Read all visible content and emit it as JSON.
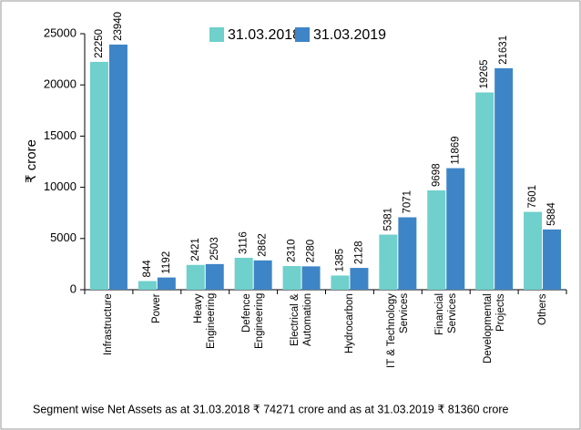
{
  "chart_data": {
    "type": "bar",
    "y_label": "₹ crore",
    "note": "Segment wise Net Assets as at 31.03.2018 ₹ 74271 crore and as at 31.03.2019 ₹ 81360 crore",
    "categories": [
      "Infrastructure",
      "Power",
      "Heavy Engineering",
      "Defence\nEngineering",
      "Electrical &\nAutomation",
      "Hydrocarbon",
      "IT & Technology\nServices",
      "Financial Services",
      "Developmental\nProjects",
      "Others"
    ],
    "series": [
      {
        "name": "31.03.2018",
        "color": "#6fd0cc",
        "values": [
          22250,
          844,
          2421,
          3116,
          2310,
          1385,
          5381,
          9698,
          19265,
          7601
        ]
      },
      {
        "name": "31.03.2019",
        "color": "#3d85c6",
        "values": [
          23940,
          1192,
          2503,
          2862,
          2280,
          2128,
          7071,
          11869,
          21631,
          5884
        ]
      }
    ],
    "ylim": [
      0,
      25000
    ],
    "yticks": [
      0,
      5000,
      10000,
      15000,
      20000,
      25000
    ]
  }
}
